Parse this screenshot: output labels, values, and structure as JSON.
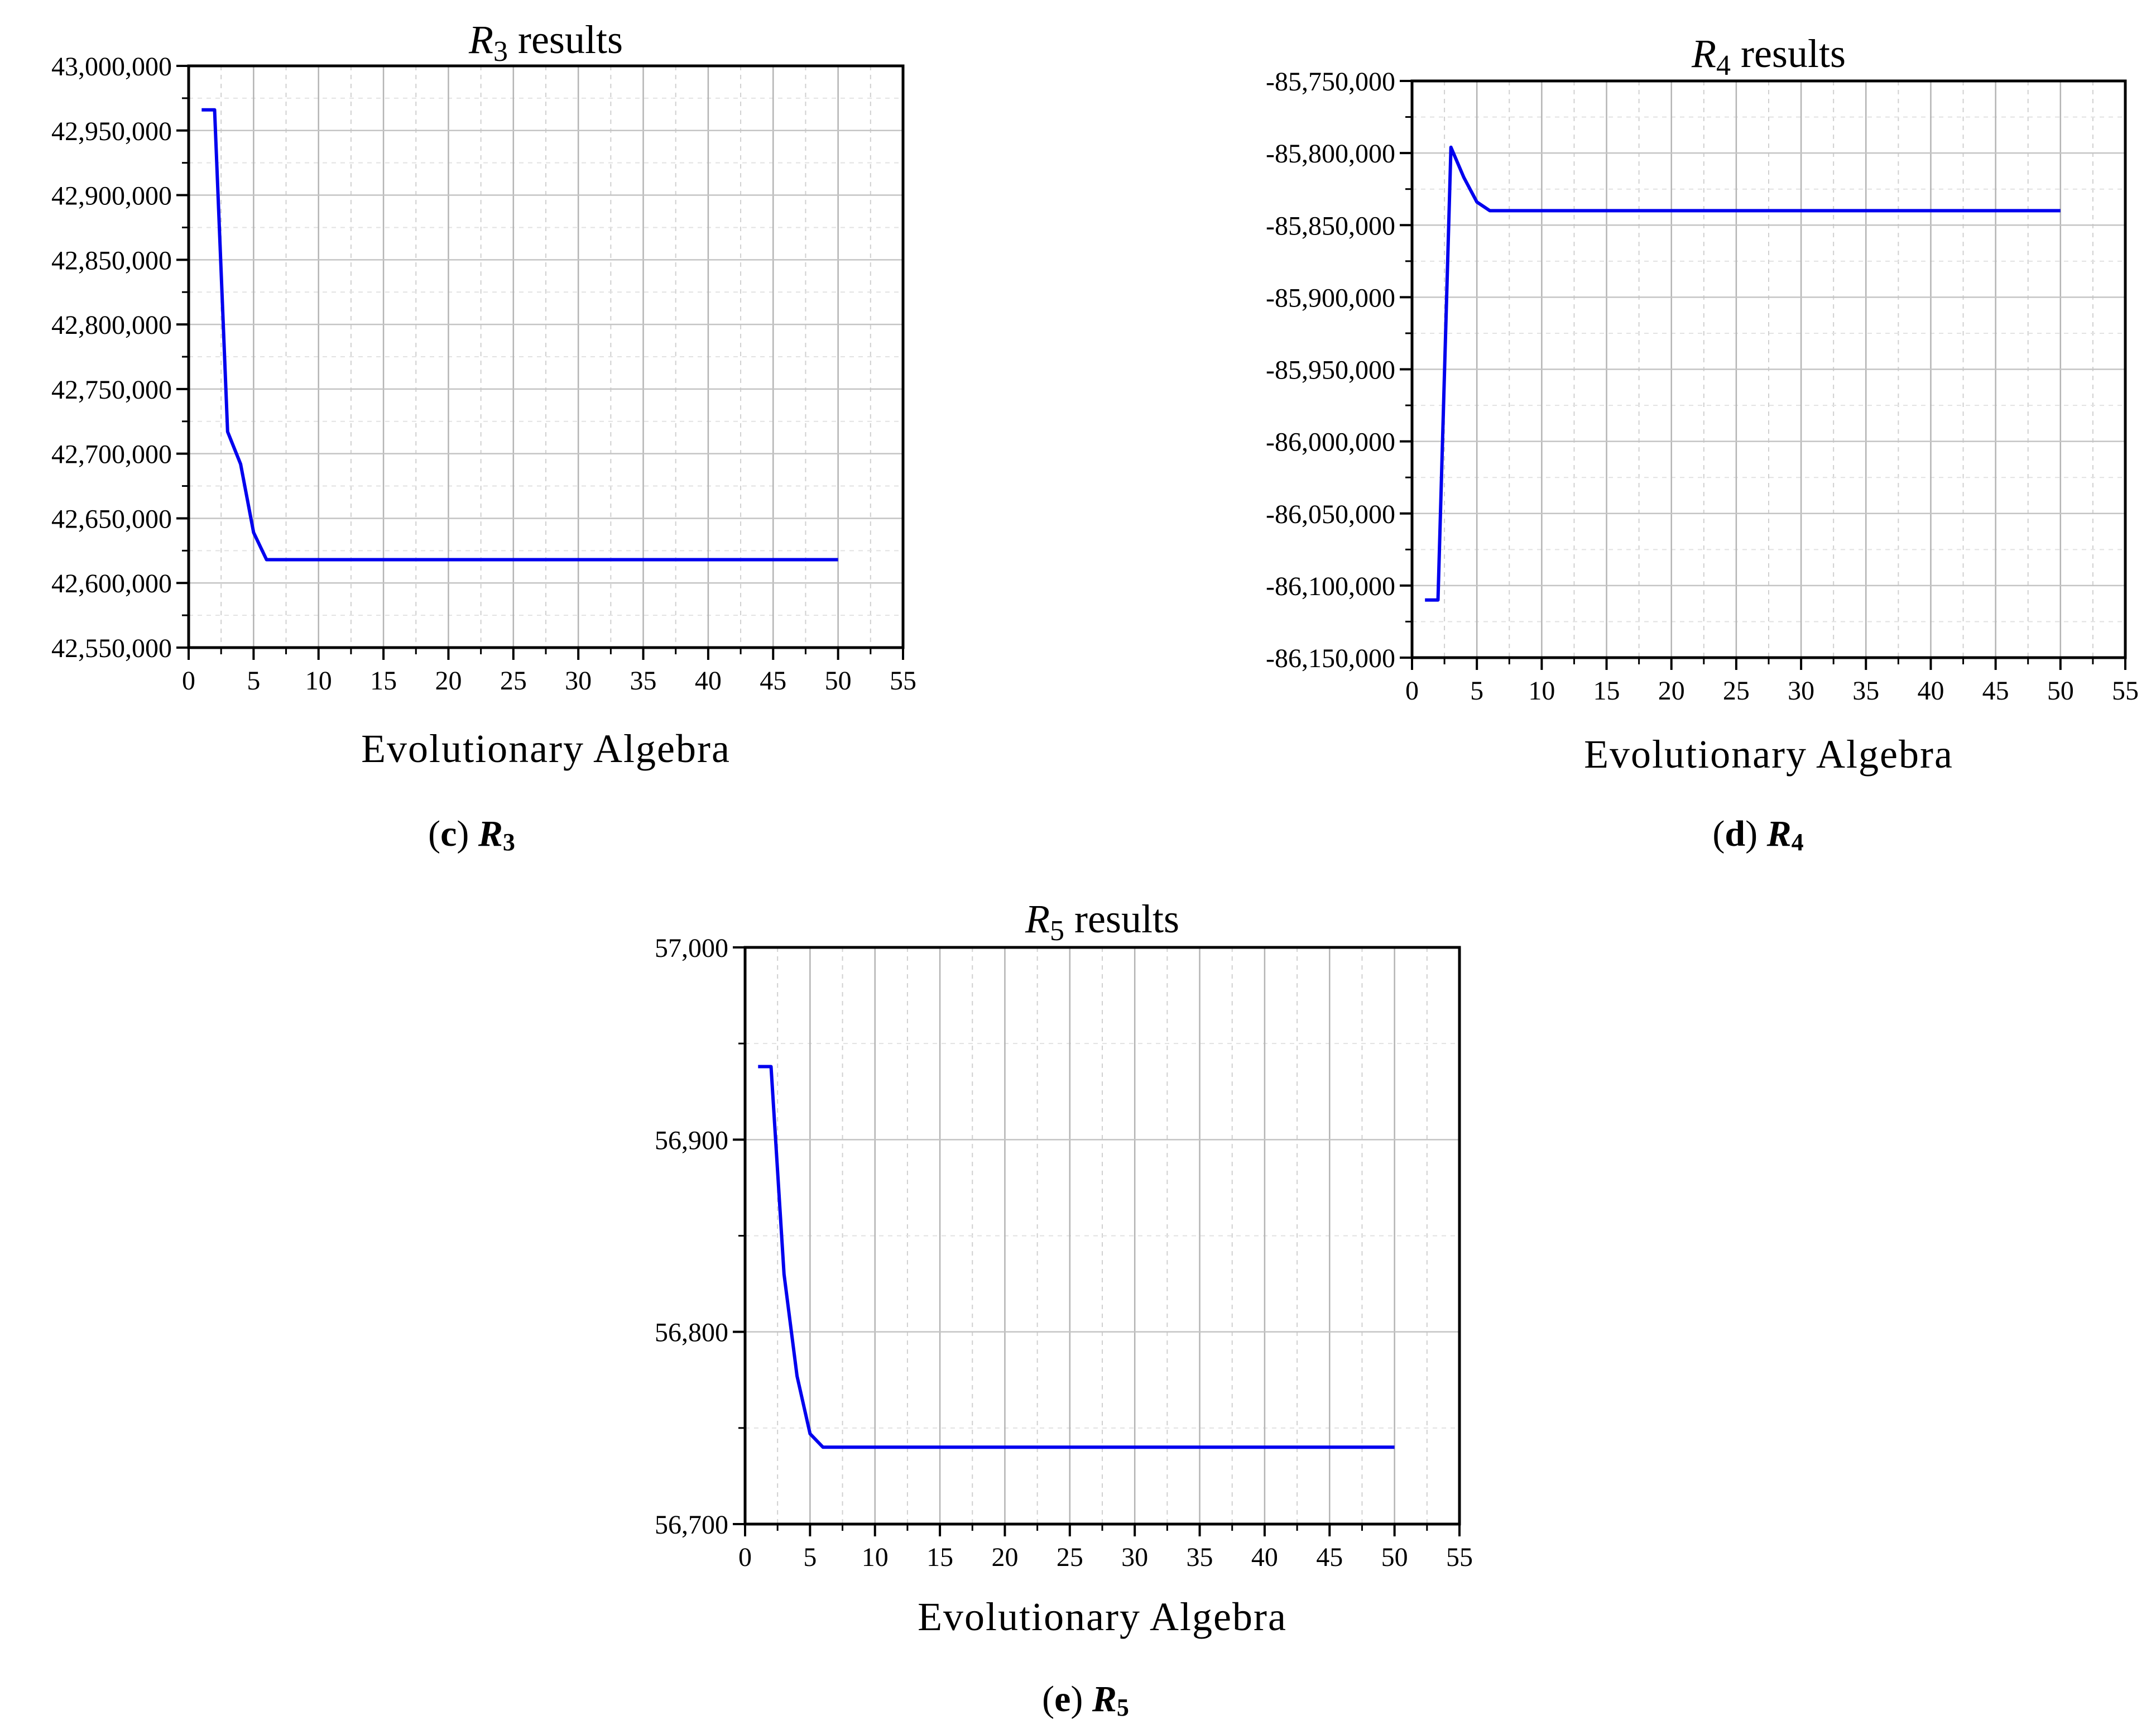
{
  "chart_data": [
    {
      "type": "line",
      "panel": "c",
      "title_var": "R",
      "title_sub": "3",
      "title_suffix": " results",
      "caption_letter": "c",
      "caption_var": "R",
      "caption_sub": "3",
      "xlabel": "Evolutionary Algebra",
      "ylabel": "",
      "xlim": [
        0,
        55
      ],
      "ylim": [
        42550000,
        43000000
      ],
      "xticks": [
        0,
        5,
        10,
        15,
        20,
        25,
        30,
        35,
        40,
        45,
        50,
        55
      ],
      "xtick_labels": [
        "0",
        "5",
        "10",
        "15",
        "20",
        "25",
        "30",
        "35",
        "40",
        "45",
        "50",
        "55"
      ],
      "yticks": [
        42550000,
        42600000,
        42650000,
        42700000,
        42750000,
        42800000,
        42850000,
        42900000,
        42950000,
        43000000
      ],
      "ytick_labels": [
        "42,550,000",
        "42,600,000",
        "42,650,000",
        "42,700,000",
        "42,750,000",
        "42,800,000",
        "42,850,000",
        "42,900,000",
        "42,950,000",
        "43,000,000"
      ],
      "grid": true,
      "series": [
        {
          "name": "R3",
          "color": "#0000ee",
          "x": [
            1,
            2,
            3,
            4,
            5,
            6,
            50
          ],
          "y": [
            42966000,
            42966000,
            42717000,
            42692000,
            42639000,
            42618000,
            42618000
          ]
        }
      ]
    },
    {
      "type": "line",
      "panel": "d",
      "title_var": "R",
      "title_sub": "4",
      "title_suffix": " results",
      "caption_letter": "d",
      "caption_var": "R",
      "caption_sub": "4",
      "xlabel": "Evolutionary Algebra",
      "ylabel": "",
      "xlim": [
        0,
        55
      ],
      "ylim": [
        -86150000,
        -85750000
      ],
      "xticks": [
        0,
        5,
        10,
        15,
        20,
        25,
        30,
        35,
        40,
        45,
        50,
        55
      ],
      "xtick_labels": [
        "0",
        "5",
        "10",
        "15",
        "20",
        "25",
        "30",
        "35",
        "40",
        "45",
        "50",
        "55"
      ],
      "yticks": [
        -86150000,
        -86100000,
        -86050000,
        -86000000,
        -85950000,
        -85900000,
        -85850000,
        -85800000,
        -85750000
      ],
      "ytick_labels": [
        "-86,150,000",
        "-86,100,000",
        "-86,050,000",
        "-86,000,000",
        "-85,950,000",
        "-85,900,000",
        "-85,850,000",
        "-85,800,000",
        "-85,750,000"
      ],
      "grid": true,
      "series": [
        {
          "name": "R4",
          "color": "#0000ee",
          "x": [
            1,
            2,
            3,
            4,
            5,
            6,
            50
          ],
          "y": [
            -86110000,
            -86110000,
            -85796000,
            -85817000,
            -85834000,
            -85840000,
            -85840000
          ]
        }
      ]
    },
    {
      "type": "line",
      "panel": "e",
      "title_var": "R",
      "title_sub": "5",
      "title_suffix": " results",
      "caption_letter": "e",
      "caption_var": "R",
      "caption_sub": "5",
      "xlabel": "Evolutionary Algebra",
      "ylabel": "",
      "xlim": [
        0,
        55
      ],
      "ylim": [
        56700,
        57000
      ],
      "xticks": [
        0,
        5,
        10,
        15,
        20,
        25,
        30,
        35,
        40,
        45,
        50,
        55
      ],
      "xtick_labels": [
        "0",
        "5",
        "10",
        "15",
        "20",
        "25",
        "30",
        "35",
        "40",
        "45",
        "50",
        "55"
      ],
      "yticks": [
        56700,
        56800,
        56900,
        57000
      ],
      "ytick_labels": [
        "56,700",
        "56,800",
        "56,900",
        "57,000"
      ],
      "grid": true,
      "series": [
        {
          "name": "R5",
          "color": "#0000ee",
          "x": [
            1,
            2,
            3,
            4,
            5,
            6,
            50
          ],
          "y": [
            56938,
            56938,
            56830,
            56777,
            56747,
            56740,
            56740
          ]
        }
      ]
    }
  ]
}
